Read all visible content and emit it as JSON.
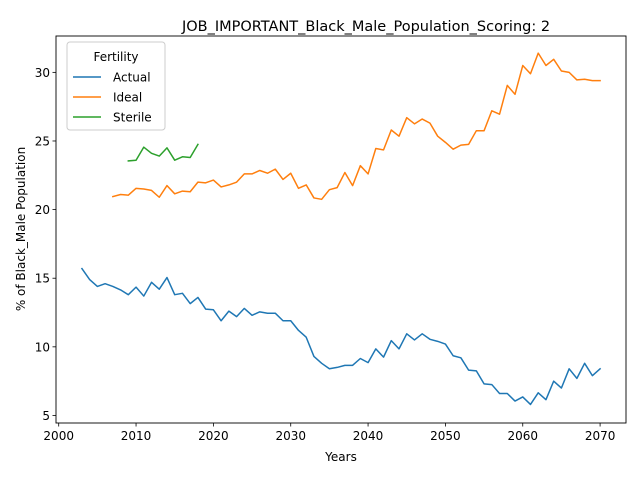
{
  "chart_data": {
    "type": "line",
    "title": "JOB_IMPORTANT_Black_Male_Population_Scoring: 2",
    "xlabel": "Years",
    "ylabel": "% of Black_Male Population",
    "xlim": [
      1999.65,
      2073.35
    ],
    "ylim": [
      4.45,
      32.65
    ],
    "xticks": [
      2000,
      2010,
      2020,
      2030,
      2040,
      2050,
      2060,
      2070
    ],
    "yticks": [
      5,
      10,
      15,
      20,
      25,
      30
    ],
    "grid": false,
    "legend": {
      "title": "Fertility",
      "placement": "upper-left"
    },
    "series": [
      {
        "name": "Actual",
        "color": "#1f77b4",
        "x": [
          2003,
          2004,
          2005,
          2006,
          2007,
          2008,
          2009,
          2010,
          2011,
          2012,
          2013,
          2014,
          2015,
          2016,
          2017,
          2018,
          2019,
          2020,
          2021,
          2022,
          2023,
          2024,
          2025,
          2026,
          2027,
          2028,
          2029,
          2030,
          2031,
          2032,
          2033,
          2034,
          2035,
          2036,
          2037,
          2038,
          2039,
          2040,
          2041,
          2042,
          2043,
          2044,
          2045,
          2046,
          2047,
          2048,
          2049,
          2050,
          2051,
          2052,
          2053,
          2054,
          2055,
          2056,
          2057,
          2058,
          2059,
          2060,
          2061,
          2062,
          2063,
          2064,
          2065,
          2066,
          2067,
          2068,
          2069,
          2070
        ],
        "y": [
          15.7,
          14.9,
          14.4,
          14.6,
          14.4,
          14.15,
          13.8,
          14.35,
          13.7,
          14.7,
          14.2,
          15.05,
          13.8,
          13.9,
          13.15,
          13.6,
          12.75,
          12.7,
          11.9,
          12.6,
          12.2,
          12.8,
          12.3,
          12.55,
          12.45,
          12.45,
          11.9,
          11.9,
          11.2,
          10.7,
          9.3,
          8.8,
          8.4,
          8.5,
          8.65,
          8.65,
          9.15,
          8.85,
          9.85,
          9.25,
          10.45,
          9.85,
          10.95,
          10.5,
          10.95,
          10.55,
          10.4,
          10.2,
          9.35,
          9.2,
          8.3,
          8.25,
          7.3,
          7.25,
          6.6,
          6.6,
          6.05,
          6.35,
          5.8,
          6.65,
          6.15,
          7.5,
          7.0,
          8.4,
          7.7,
          8.8,
          7.9,
          8.4
        ]
      },
      {
        "name": "Ideal",
        "color": "#ff7f0e",
        "x": [
          2007,
          2008,
          2009,
          2010,
          2011,
          2012,
          2013,
          2014,
          2015,
          2016,
          2017,
          2018,
          2019,
          2020,
          2021,
          2022,
          2023,
          2024,
          2025,
          2026,
          2027,
          2028,
          2029,
          2030,
          2031,
          2032,
          2033,
          2034,
          2035,
          2036,
          2037,
          2038,
          2039,
          2040,
          2041,
          2042,
          2043,
          2044,
          2045,
          2046,
          2047,
          2048,
          2049,
          2050,
          2051,
          2052,
          2053,
          2054,
          2055,
          2056,
          2057,
          2058,
          2059,
          2060,
          2061,
          2062,
          2063,
          2064,
          2065,
          2066,
          2067,
          2068,
          2069,
          2070
        ],
        "y": [
          20.95,
          21.1,
          21.05,
          21.55,
          21.5,
          21.4,
          20.9,
          21.75,
          21.15,
          21.35,
          21.3,
          22.0,
          21.95,
          22.15,
          21.65,
          21.8,
          22.0,
          22.6,
          22.6,
          22.85,
          22.65,
          22.95,
          22.2,
          22.65,
          21.55,
          21.8,
          20.85,
          20.75,
          21.45,
          21.6,
          22.7,
          21.75,
          23.2,
          22.6,
          24.45,
          24.35,
          25.8,
          25.35,
          26.7,
          26.25,
          26.6,
          26.3,
          25.35,
          24.9,
          24.4,
          24.7,
          24.75,
          25.75,
          25.75,
          27.2,
          26.95,
          29.05,
          28.4,
          30.5,
          29.9,
          31.4,
          30.5,
          30.95,
          30.1,
          30.0,
          29.45,
          29.5,
          29.4,
          29.4
        ]
      },
      {
        "name": "Sterile",
        "color": "#2ca02c",
        "x": [
          2009,
          2010,
          2011,
          2012,
          2013,
          2014,
          2015,
          2016,
          2017,
          2018
        ],
        "y": [
          23.55,
          23.6,
          24.55,
          24.1,
          23.9,
          24.5,
          23.6,
          23.85,
          23.8,
          24.75
        ]
      }
    ]
  }
}
